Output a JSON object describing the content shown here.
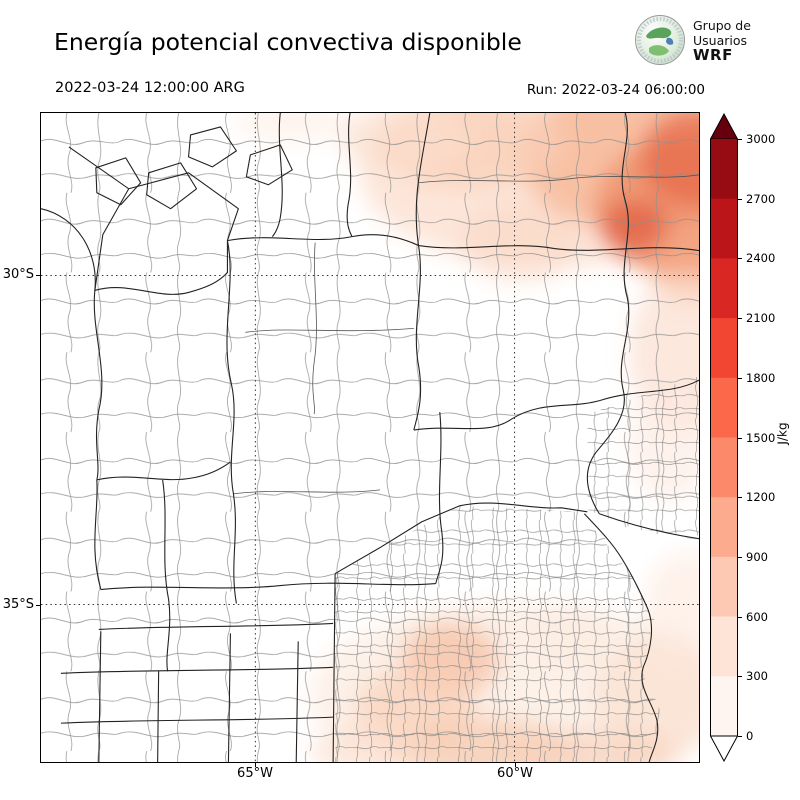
{
  "header": {
    "title": "Energía potencial convectiva disponible",
    "valid_time": "2022-03-24 12:00:00 ARG",
    "run_label": "Run: 2022-03-24 06:00:00",
    "logo": {
      "line1": "Grupo de",
      "line2": "Usuarios",
      "line3": "WRF"
    }
  },
  "chart_data": {
    "type": "heatmap",
    "title": "Energía potencial convectiva disponible",
    "variable": "CAPE",
    "units": "J/kg",
    "valid_time": "2022-03-24 12:00:00 ARG",
    "run_time": "2022-03-24 06:00:00",
    "axes": {
      "x_ticks": [
        "65°W",
        "60°W"
      ],
      "y_ticks": [
        "30°S",
        "35°S"
      ],
      "grid": "dotted latitude/longitude lines at 30°S, 35°S, 65°W, 60°W"
    },
    "colorbar": {
      "label": "J/kg",
      "ticks": [
        0,
        300,
        600,
        900,
        1200,
        1500,
        1800,
        2100,
        2400,
        2700,
        3000
      ],
      "colors": [
        "#fff5f0",
        "#fee3d7",
        "#fdc9b3",
        "#fcab8f",
        "#fc8a6a",
        "#fb694a",
        "#f24633",
        "#d92723",
        "#bb151a",
        "#970b13"
      ],
      "over_color": "#67000d",
      "under_color": "#ffffff"
    },
    "features": [
      {
        "area": "northeast corner of domain (upper right)",
        "cape_jkg": "300-1500 with local maxima"
      },
      {
        "area": "eastern edge near 30-31°S",
        "cape_jkg": "0-300"
      },
      {
        "area": "Buenos Aires province and Río de la Plata (lower right)",
        "cape_jkg": "0-600 in patches"
      },
      {
        "area": "remainder of domain (center and west)",
        "cape_jkg": "~0"
      }
    ]
  }
}
